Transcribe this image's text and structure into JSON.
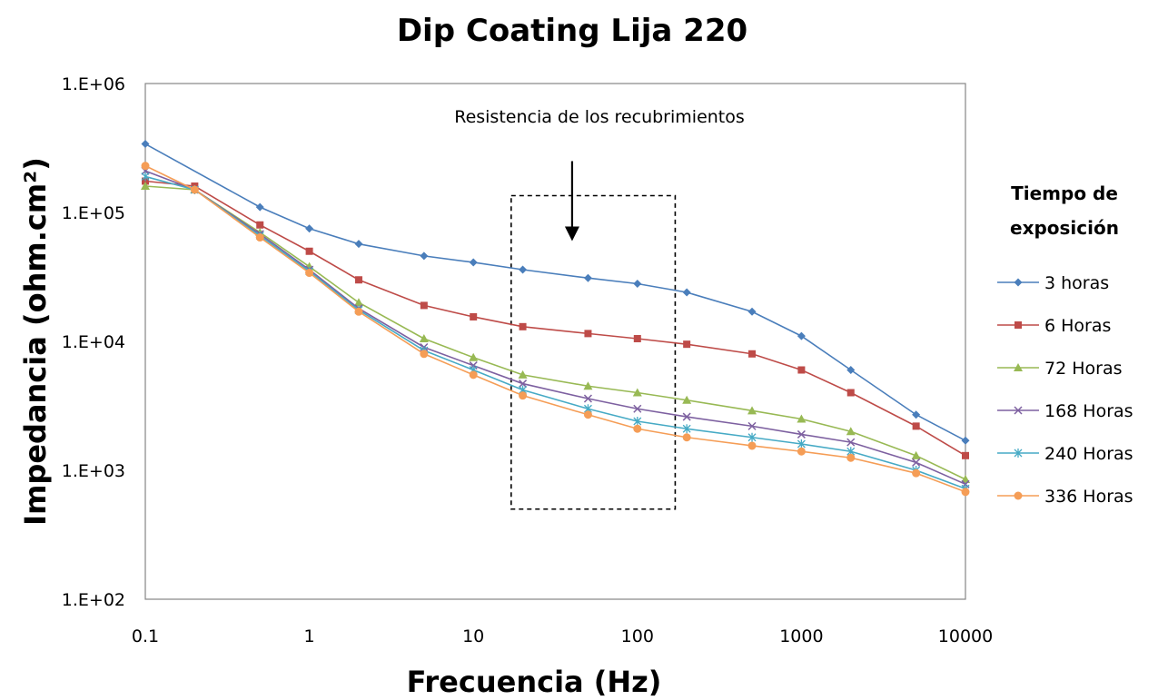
{
  "chart_data": {
    "type": "line",
    "title": "Dip Coating Lija 220",
    "xlabel": "Frecuencia (Hz)",
    "ylabel": "Impedancia (ohm.cm²)",
    "xscale": "log",
    "yscale": "log",
    "xlim": [
      0.1,
      10000
    ],
    "ylim": [
      100,
      1000000
    ],
    "grid": false,
    "x_ticks": [
      {
        "value": 0.1,
        "label": "0.1"
      },
      {
        "value": 1,
        "label": "1"
      },
      {
        "value": 10,
        "label": "10"
      },
      {
        "value": 100,
        "label": "100"
      },
      {
        "value": 1000,
        "label": "1000"
      },
      {
        "value": 10000,
        "label": "10000"
      }
    ],
    "y_ticks": [
      {
        "value": 100,
        "label": "1.E+02"
      },
      {
        "value": 1000,
        "label": "1.E+03"
      },
      {
        "value": 10000,
        "label": "1.E+04"
      },
      {
        "value": 100000,
        "label": "1.E+05"
      },
      {
        "value": 1000000,
        "label": "1.E+06"
      }
    ],
    "legend": {
      "title_line1": "Tiempo de",
      "title_line2": "exposición",
      "placement": "right"
    },
    "annotation": {
      "text": "Resistencia de los recubrimientos",
      "box_x": [
        17,
        170
      ],
      "box_y": [
        500,
        135000
      ],
      "arrow_x": 40,
      "arrow_y": [
        250000,
        60000
      ]
    },
    "series": [
      {
        "name": "3 horas",
        "color": "#4a7ebb",
        "marker": "diamond",
        "x": [
          0.1,
          0.5,
          1,
          2,
          5,
          10,
          20,
          50,
          100,
          200,
          500,
          1000,
          2000,
          5000,
          10000
        ],
        "y": [
          340000,
          110000,
          75000,
          57000,
          46000,
          41000,
          36000,
          31000,
          28000,
          24000,
          17000,
          11000,
          6000,
          2700,
          1700
        ]
      },
      {
        "name": "6 Horas",
        "color": "#be4b48",
        "marker": "square",
        "x": [
          0.1,
          0.2,
          0.5,
          1,
          2,
          5,
          10,
          20,
          50,
          100,
          200,
          500,
          1000,
          2000,
          5000,
          10000
        ],
        "y": [
          175000,
          160000,
          80000,
          50000,
          30000,
          19000,
          15500,
          13000,
          11500,
          10500,
          9500,
          8000,
          6000,
          4000,
          2200,
          1300
        ]
      },
      {
        "name": "72 Horas",
        "color": "#98b954",
        "marker": "triangle",
        "x": [
          0.1,
          0.2,
          0.5,
          1,
          2,
          5,
          10,
          20,
          50,
          100,
          200,
          500,
          1000,
          2000,
          5000,
          10000
        ],
        "y": [
          160000,
          150000,
          70000,
          38000,
          20000,
          10500,
          7500,
          5500,
          4500,
          4000,
          3500,
          2900,
          2500,
          2000,
          1300,
          850
        ]
      },
      {
        "name": "168 Horas",
        "color": "#7d60a0",
        "marker": "x",
        "x": [
          0.1,
          0.2,
          0.5,
          1,
          2,
          5,
          10,
          20,
          50,
          100,
          200,
          500,
          1000,
          2000,
          5000,
          10000
        ],
        "y": [
          210000,
          150000,
          68000,
          36000,
          18000,
          9000,
          6500,
          4700,
          3600,
          3000,
          2600,
          2200,
          1900,
          1650,
          1150,
          780
        ]
      },
      {
        "name": "240 Horas",
        "color": "#46aac5",
        "marker": "star",
        "x": [
          0.1,
          0.2,
          0.5,
          1,
          2,
          5,
          10,
          20,
          50,
          100,
          200,
          500,
          1000,
          2000,
          5000,
          10000
        ],
        "y": [
          190000,
          150000,
          66000,
          35000,
          17500,
          8500,
          6000,
          4200,
          3000,
          2400,
          2100,
          1800,
          1600,
          1400,
          1000,
          720
        ]
      },
      {
        "name": "336 Horas",
        "color": "#f59d56",
        "marker": "circle",
        "x": [
          0.1,
          0.2,
          0.5,
          1,
          2,
          5,
          10,
          20,
          50,
          100,
          200,
          500,
          1000,
          2000,
          5000,
          10000
        ],
        "y": [
          230000,
          150000,
          64000,
          34000,
          17000,
          8000,
          5500,
          3800,
          2700,
          2100,
          1800,
          1550,
          1400,
          1250,
          950,
          680
        ]
      }
    ]
  }
}
